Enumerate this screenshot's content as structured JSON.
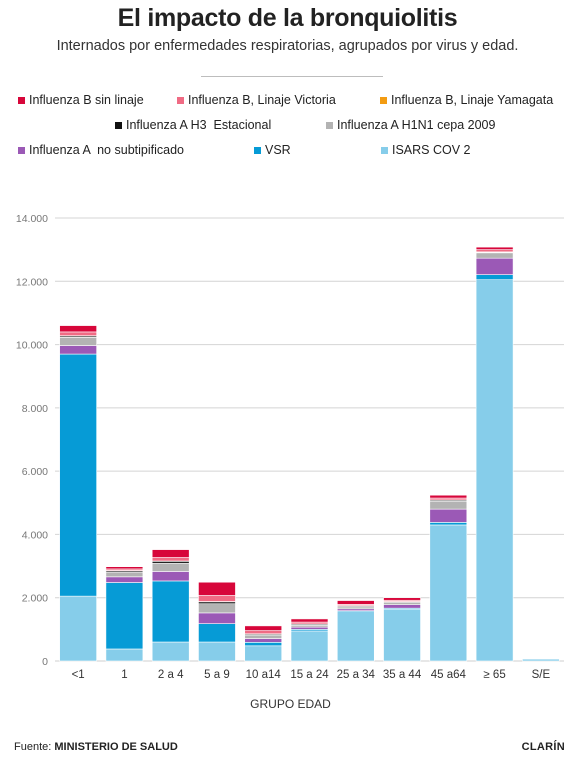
{
  "title": "El impacto de la bronquiolitis",
  "subtitle": "Internados por enfermedades respiratorias, agrupados por virus y edad.",
  "footer": {
    "source_label": "Fuente:",
    "source_value": "MINISTERIO DE SALUD",
    "brand": "CLARÍN"
  },
  "chart_data": {
    "type": "bar",
    "stacked": true,
    "xlabel": "GRUPO EDAD",
    "ylabel": "",
    "ylim": [
      0,
      14000
    ],
    "yticks": [
      0,
      2000,
      4000,
      6000,
      8000,
      10000,
      12000,
      14000
    ],
    "ytick_labels": [
      "0",
      "2.000",
      "4.000",
      "6.000",
      "8.000",
      "10.000",
      "12.000",
      "14.000"
    ],
    "grid": true,
    "legend_position": "top",
    "categories": [
      "<1",
      "1",
      "2 a 4",
      "5 a 9",
      "10 a14",
      "15 a 24",
      "25 a 34",
      "35 a 44",
      "45 a64",
      "≥ 65",
      "S/E"
    ],
    "series": [
      {
        "name": "ISARS COV 2",
        "color": "#86cdea",
        "values": [
          2050,
          380,
          600,
          600,
          480,
          950,
          1560,
          1640,
          4300,
          12050,
          60
        ]
      },
      {
        "name": "VSR",
        "color": "#069bd6",
        "values": [
          7650,
          2100,
          1930,
          580,
          110,
          50,
          30,
          30,
          80,
          160,
          0
        ]
      },
      {
        "name": "Influenza A  no subtipificado",
        "color": "#9b59b6",
        "values": [
          270,
          180,
          300,
          340,
          120,
          70,
          60,
          110,
          420,
          520,
          0
        ]
      },
      {
        "name": "Influenza A H1N1 cepa 2009",
        "color": "#b3b3b3",
        "values": [
          260,
          150,
          260,
          290,
          110,
          60,
          60,
          70,
          250,
          170,
          0
        ]
      },
      {
        "name": "Influenza A H3  Estacional",
        "color": "#111111",
        "values": [
          40,
          40,
          60,
          60,
          30,
          30,
          30,
          20,
          30,
          20,
          0
        ]
      },
      {
        "name": "Influenza B, Linaje Yamagata",
        "color": "#f39c12",
        "values": [
          10,
          10,
          10,
          10,
          10,
          10,
          10,
          10,
          10,
          10,
          0
        ]
      },
      {
        "name": "Influenza B, Linaje Victoria",
        "color": "#f06b84",
        "values": [
          120,
          50,
          110,
          190,
          100,
          60,
          40,
          40,
          60,
          70,
          0
        ]
      },
      {
        "name": "Influenza B sin linaje",
        "color": "#d7063a",
        "values": [
          200,
          70,
          250,
          420,
          150,
          100,
          120,
          80,
          90,
          80,
          0
        ]
      }
    ]
  }
}
